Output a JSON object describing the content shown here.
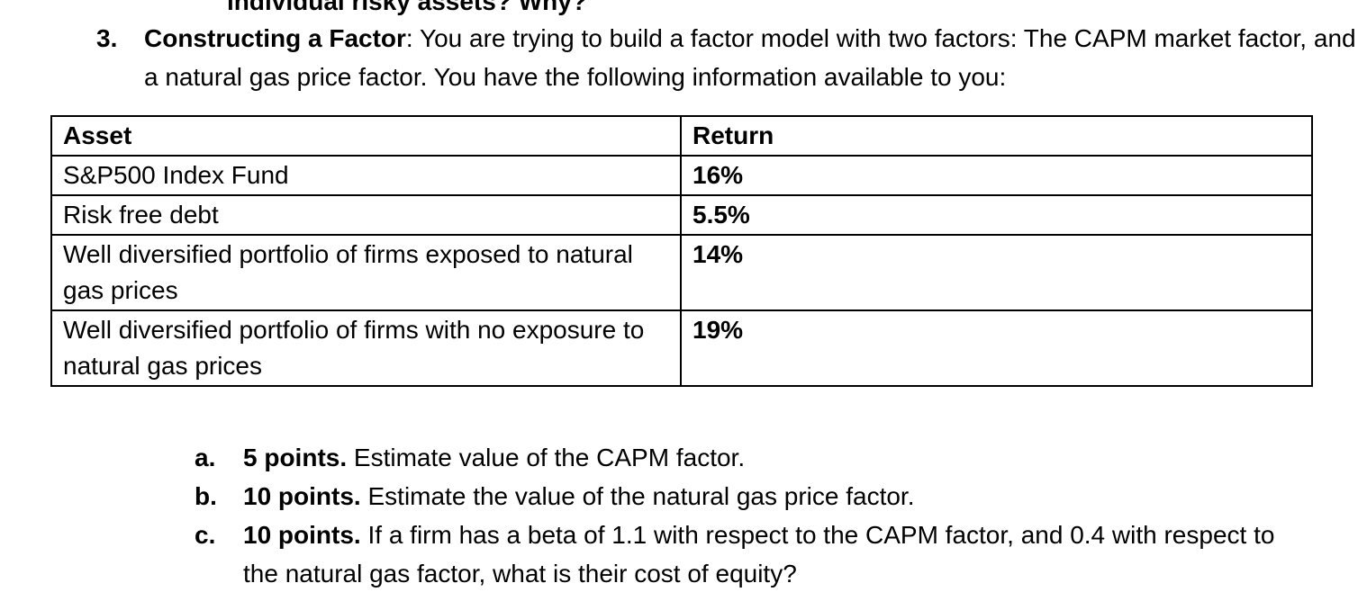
{
  "top_fragment": {
    "text": "individual risky assets? Why?"
  },
  "question": {
    "number": "3.",
    "title": "Constructing a Factor",
    "body": ": You are trying to build a factor model with two factors: The CAPM market factor, and a natural gas price factor. You have the following information available to you:"
  },
  "table": {
    "headers": [
      "Asset",
      "Return"
    ],
    "rows": [
      {
        "asset": "S&P500 Index Fund",
        "return": "16%"
      },
      {
        "asset": "Risk free debt",
        "return": "5.5%"
      },
      {
        "asset": "Well diversified portfolio of firms exposed to natural gas prices",
        "return": "14%"
      },
      {
        "asset": "Well diversified portfolio of firms with no exposure to natural gas prices",
        "return": "19%"
      }
    ]
  },
  "subquestions": [
    {
      "marker": "a.",
      "points": "5 points.",
      "text": "Estimate value of the CAPM factor."
    },
    {
      "marker": "b.",
      "points": "10 points.",
      "text": "Estimate the value of the natural gas price factor."
    },
    {
      "marker": "c.",
      "points": "10 points.",
      "text": "If a firm has a beta of 1.1 with respect to the CAPM factor, and 0.4 with respect to the natural gas factor, what is their cost of equity?"
    }
  ]
}
